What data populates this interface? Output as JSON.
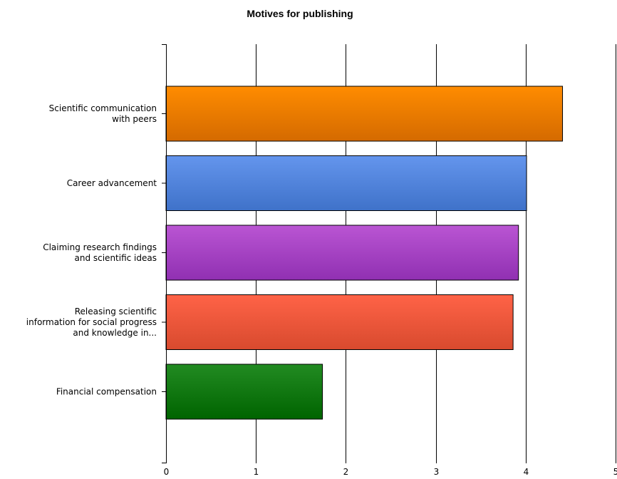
{
  "chart_data": {
    "type": "bar",
    "orientation": "horizontal",
    "title": "Motives for publishing",
    "xlabel": "",
    "ylabel": "",
    "xlim": [
      0,
      5
    ],
    "ticks": [
      "0",
      "1",
      "2",
      "3",
      "4",
      "5"
    ],
    "grid": true,
    "legend": "none",
    "categories": [
      {
        "lines": [
          "Scientific communication",
          "with peers"
        ]
      },
      {
        "lines": [
          "Career advancement"
        ]
      },
      {
        "lines": [
          "Claiming research findings",
          "and scientific ideas"
        ]
      },
      {
        "lines": [
          "Releasing scientific",
          "information for social progress",
          "and knowledge in..."
        ]
      },
      {
        "lines": [
          "Financial compensation"
        ]
      }
    ],
    "values": [
      4.41,
      4.01,
      3.92,
      3.86,
      1.74
    ],
    "colors": [
      [
        "#ff8c00",
        "#d46a00"
      ],
      [
        "#6495ed",
        "#3f72c9"
      ],
      [
        "#ba55d3",
        "#9030b2"
      ],
      [
        "#ff6347",
        "#d84a2e"
      ],
      [
        "#228b22",
        "#006400"
      ]
    ]
  }
}
